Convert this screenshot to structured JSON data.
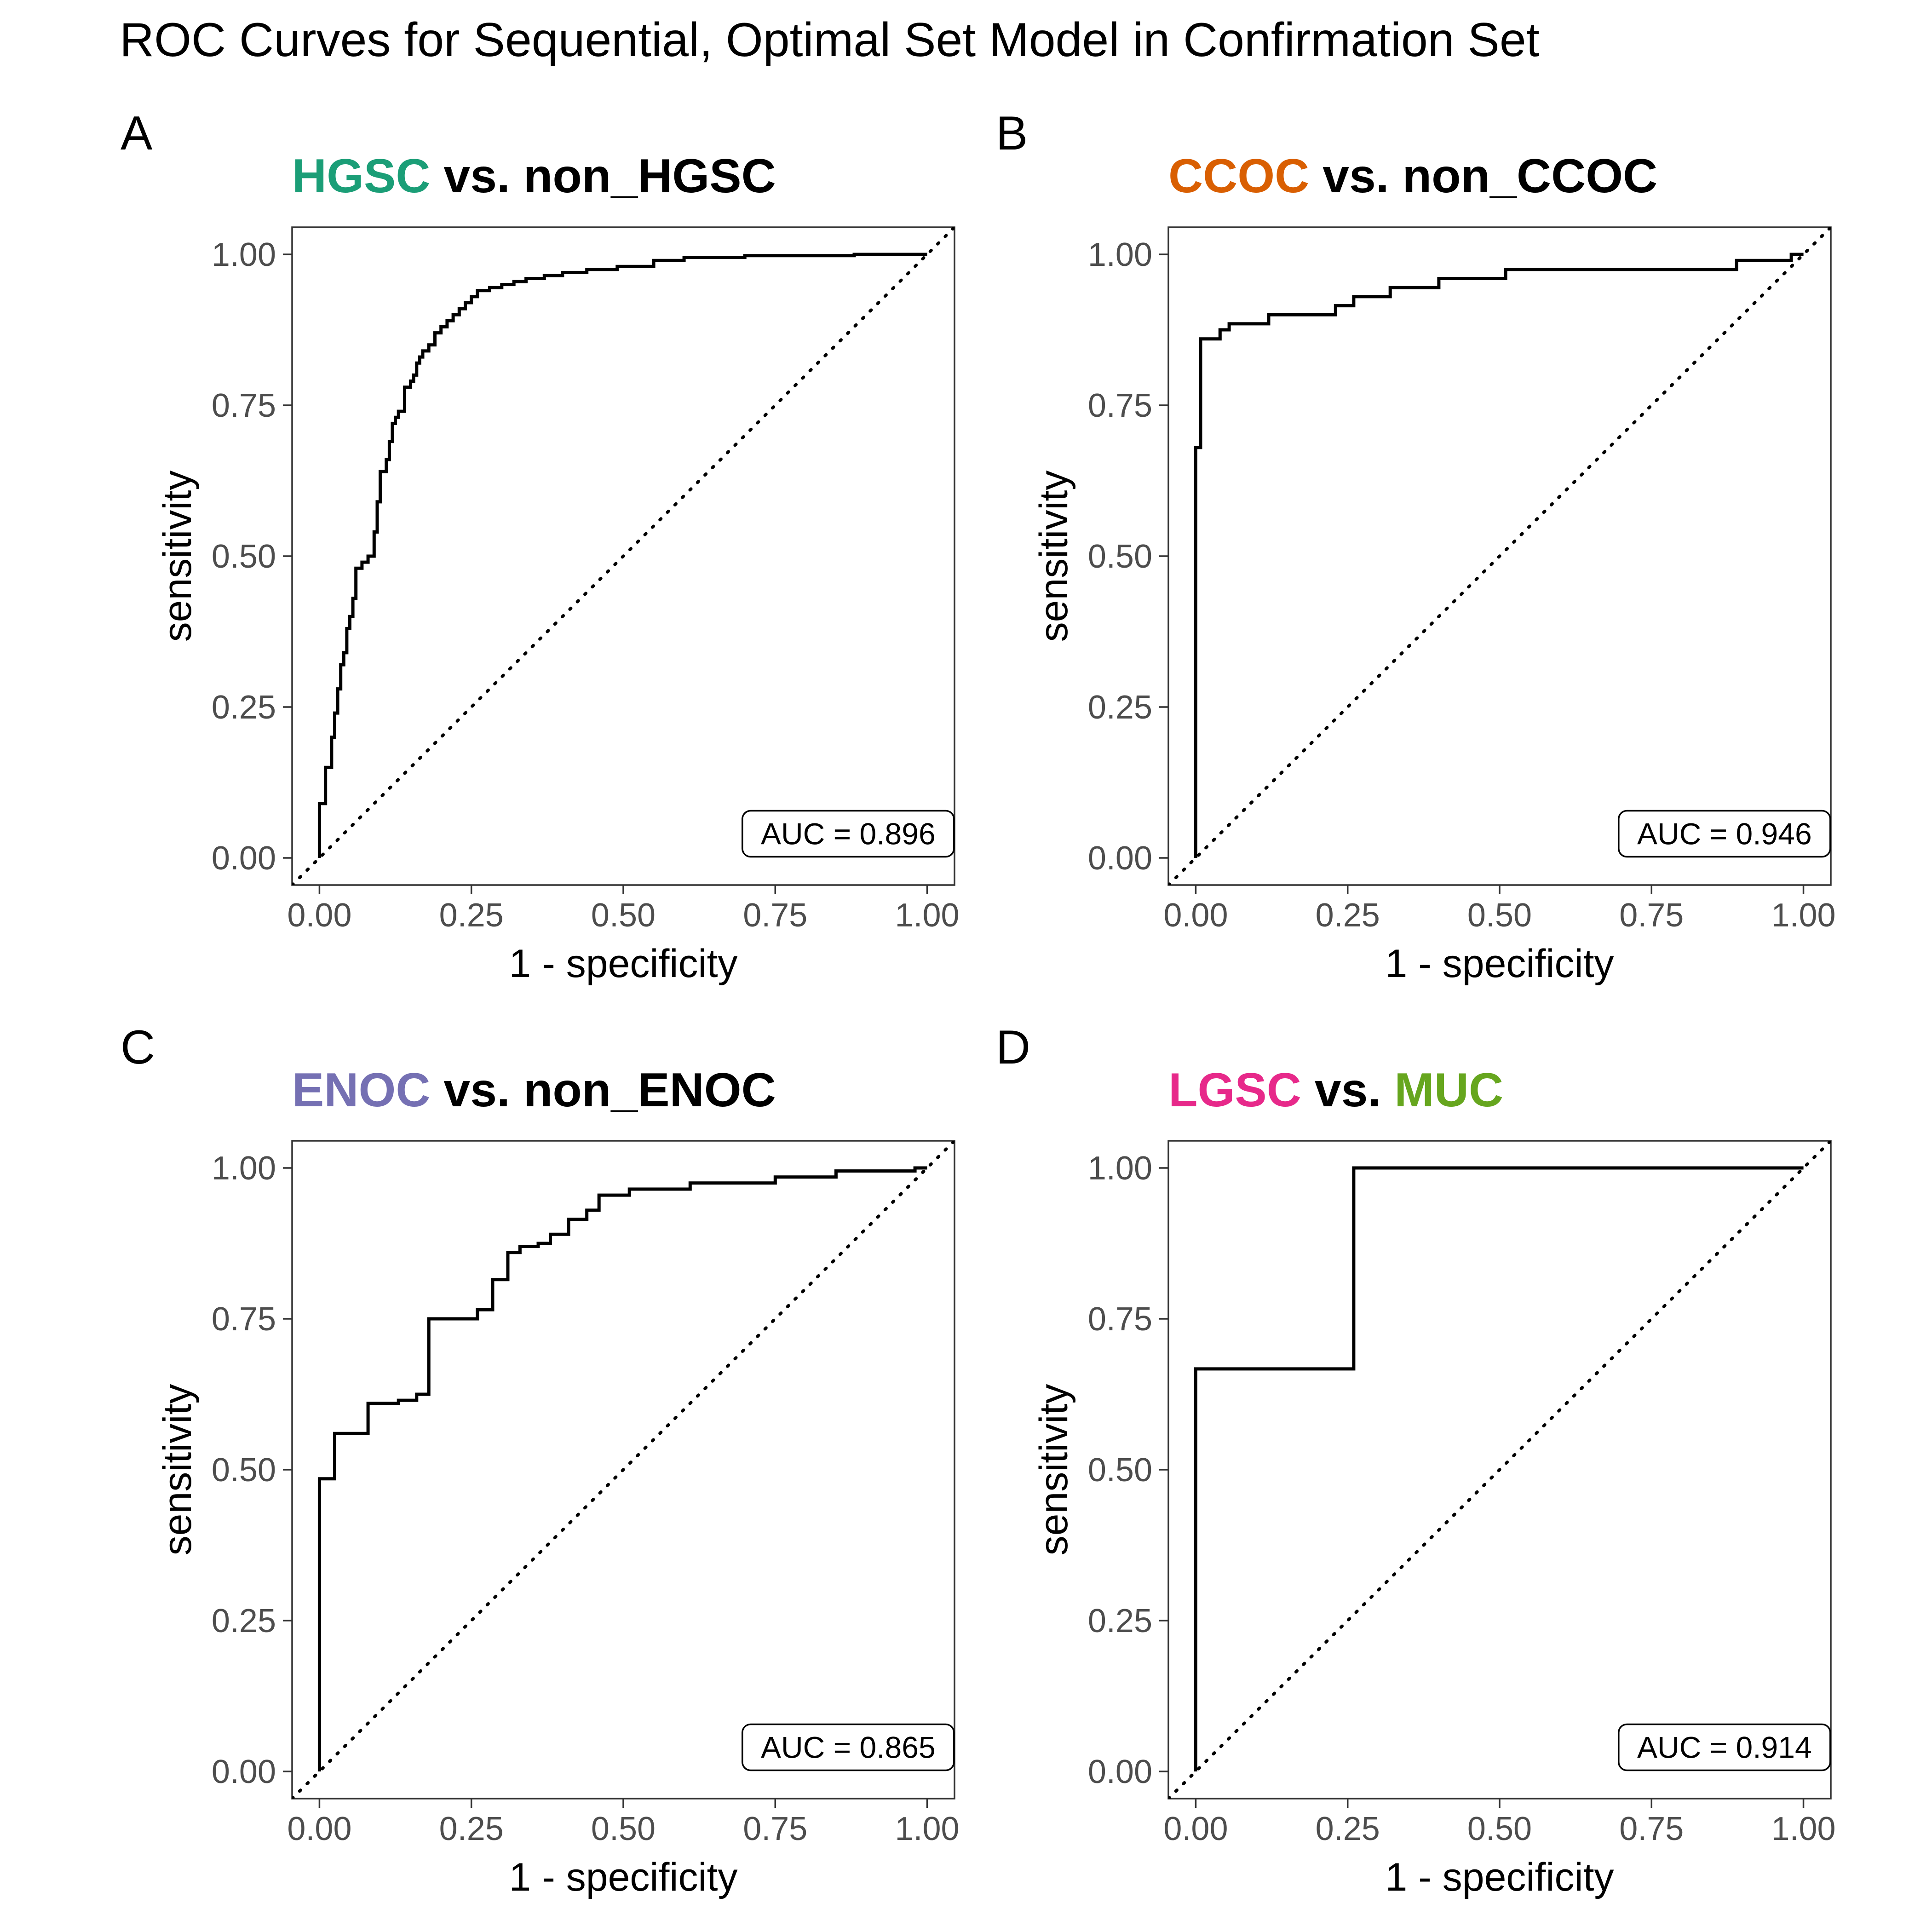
{
  "figure_title": "ROC Curves for Sequential, Optimal Set Model in Confirmation Set",
  "chart_data": [
    {
      "type": "line",
      "panel_label": "A",
      "title_parts": [
        {
          "text": "HGSC",
          "color": "#1b9e77"
        },
        {
          "text": " vs. non_HGSC",
          "color": "#000000"
        }
      ],
      "xlabel": "1 - specificity",
      "ylabel": "sensitivity",
      "xlim": [
        0,
        1
      ],
      "ylim": [
        0,
        1
      ],
      "xticks": [
        "0.00",
        "0.25",
        "0.50",
        "0.75",
        "1.00"
      ],
      "yticks": [
        "0.00",
        "0.25",
        "0.50",
        "0.75",
        "1.00"
      ],
      "annotation": "AUC = 0.896",
      "reference_line": "diagonal-dotted",
      "x": [
        0,
        0,
        0.01,
        0.01,
        0.02,
        0.02,
        0.025,
        0.025,
        0.03,
        0.03,
        0.035,
        0.035,
        0.04,
        0.04,
        0.045,
        0.045,
        0.05,
        0.05,
        0.055,
        0.055,
        0.06,
        0.06,
        0.07,
        0.07,
        0.08,
        0.08,
        0.09,
        0.09,
        0.095,
        0.095,
        0.1,
        0.1,
        0.11,
        0.11,
        0.115,
        0.115,
        0.12,
        0.12,
        0.125,
        0.125,
        0.13,
        0.13,
        0.14,
        0.14,
        0.15,
        0.15,
        0.155,
        0.155,
        0.16,
        0.16,
        0.165,
        0.165,
        0.17,
        0.17,
        0.18,
        0.18,
        0.19,
        0.19,
        0.2,
        0.2,
        0.21,
        0.21,
        0.22,
        0.22,
        0.23,
        0.23,
        0.24,
        0.24,
        0.25,
        0.25,
        0.26,
        0.26,
        0.28,
        0.28,
        0.3,
        0.3,
        0.32,
        0.32,
        0.34,
        0.34,
        0.37,
        0.37,
        0.4,
        0.4,
        0.44,
        0.44,
        0.49,
        0.49,
        0.55,
        0.55,
        0.6,
        0.6,
        0.7,
        0.7,
        0.88,
        0.88,
        1.0
      ],
      "y": [
        0,
        0.09,
        0.09,
        0.15,
        0.15,
        0.2,
        0.2,
        0.24,
        0.24,
        0.28,
        0.28,
        0.32,
        0.32,
        0.34,
        0.34,
        0.38,
        0.38,
        0.4,
        0.4,
        0.43,
        0.43,
        0.48,
        0.48,
        0.49,
        0.49,
        0.5,
        0.5,
        0.54,
        0.54,
        0.59,
        0.59,
        0.64,
        0.64,
        0.66,
        0.66,
        0.69,
        0.69,
        0.72,
        0.72,
        0.73,
        0.73,
        0.74,
        0.74,
        0.78,
        0.78,
        0.79,
        0.79,
        0.8,
        0.8,
        0.82,
        0.82,
        0.83,
        0.83,
        0.84,
        0.84,
        0.85,
        0.85,
        0.87,
        0.87,
        0.88,
        0.88,
        0.89,
        0.89,
        0.9,
        0.9,
        0.91,
        0.91,
        0.92,
        0.92,
        0.93,
        0.93,
        0.94,
        0.94,
        0.945,
        0.945,
        0.95,
        0.95,
        0.955,
        0.955,
        0.96,
        0.96,
        0.965,
        0.965,
        0.97,
        0.97,
        0.975,
        0.975,
        0.98,
        0.98,
        0.99,
        0.99,
        0.995,
        0.995,
        0.998,
        0.998,
        1.0,
        1.0
      ]
    },
    {
      "type": "line",
      "panel_label": "B",
      "title_parts": [
        {
          "text": "CCOC",
          "color": "#d95f02"
        },
        {
          "text": " vs. non_CCOC",
          "color": "#000000"
        }
      ],
      "xlabel": "1 - specificity",
      "ylabel": "sensitivity",
      "xlim": [
        0,
        1
      ],
      "ylim": [
        0,
        1
      ],
      "xticks": [
        "0.00",
        "0.25",
        "0.50",
        "0.75",
        "1.00"
      ],
      "yticks": [
        "0.00",
        "0.25",
        "0.50",
        "0.75",
        "1.00"
      ],
      "annotation": "AUC = 0.946",
      "reference_line": "diagonal-dotted",
      "x": [
        0,
        0,
        0.008,
        0.008,
        0.04,
        0.04,
        0.055,
        0.055,
        0.12,
        0.12,
        0.23,
        0.23,
        0.26,
        0.26,
        0.32,
        0.32,
        0.4,
        0.4,
        0.51,
        0.51,
        0.89,
        0.89,
        0.98,
        0.98,
        1.0
      ],
      "y": [
        0,
        0.68,
        0.68,
        0.86,
        0.86,
        0.875,
        0.875,
        0.885,
        0.885,
        0.9,
        0.9,
        0.915,
        0.915,
        0.93,
        0.93,
        0.945,
        0.945,
        0.96,
        0.96,
        0.975,
        0.975,
        0.99,
        0.99,
        1.0,
        1.0
      ]
    },
    {
      "type": "line",
      "panel_label": "C",
      "title_parts": [
        {
          "text": "ENOC",
          "color": "#7570b3"
        },
        {
          "text": " vs. non_ENOC",
          "color": "#000000"
        }
      ],
      "xlabel": "1 - specificity",
      "ylabel": "sensitivity",
      "xlim": [
        0,
        1
      ],
      "ylim": [
        0,
        1
      ],
      "xticks": [
        "0.00",
        "0.25",
        "0.50",
        "0.75",
        "1.00"
      ],
      "yticks": [
        "0.00",
        "0.25",
        "0.50",
        "0.75",
        "1.00"
      ],
      "annotation": "AUC = 0.865",
      "reference_line": "diagonal-dotted",
      "x": [
        0,
        0,
        0.025,
        0.025,
        0.08,
        0.08,
        0.13,
        0.13,
        0.16,
        0.16,
        0.18,
        0.18,
        0.26,
        0.26,
        0.285,
        0.285,
        0.31,
        0.31,
        0.33,
        0.33,
        0.36,
        0.36,
        0.38,
        0.38,
        0.41,
        0.41,
        0.44,
        0.44,
        0.46,
        0.46,
        0.51,
        0.51,
        0.61,
        0.61,
        0.75,
        0.75,
        0.85,
        0.85,
        0.98,
        0.98,
        1.0
      ],
      "y": [
        0,
        0.485,
        0.485,
        0.56,
        0.56,
        0.61,
        0.61,
        0.615,
        0.615,
        0.625,
        0.625,
        0.75,
        0.75,
        0.765,
        0.765,
        0.815,
        0.815,
        0.86,
        0.86,
        0.87,
        0.87,
        0.875,
        0.875,
        0.89,
        0.89,
        0.915,
        0.915,
        0.93,
        0.93,
        0.955,
        0.955,
        0.965,
        0.965,
        0.975,
        0.975,
        0.985,
        0.985,
        0.995,
        0.995,
        1.0,
        1.0
      ]
    },
    {
      "type": "line",
      "panel_label": "D",
      "title_parts": [
        {
          "text": "LGSC",
          "color": "#e7298a"
        },
        {
          "text": " vs. ",
          "color": "#000000"
        },
        {
          "text": "MUC",
          "color": "#66a61e"
        }
      ],
      "xlabel": "1 - specificity",
      "ylabel": "sensitivity",
      "xlim": [
        0,
        1
      ],
      "ylim": [
        0,
        1
      ],
      "xticks": [
        "0.00",
        "0.25",
        "0.50",
        "0.75",
        "1.00"
      ],
      "yticks": [
        "0.00",
        "0.25",
        "0.50",
        "0.75",
        "1.00"
      ],
      "annotation": "AUC = 0.914",
      "reference_line": "diagonal-dotted",
      "x": [
        0,
        0,
        0.26,
        0.26,
        1.0
      ],
      "y": [
        0,
        0.667,
        0.667,
        1.0,
        1.0
      ]
    }
  ]
}
